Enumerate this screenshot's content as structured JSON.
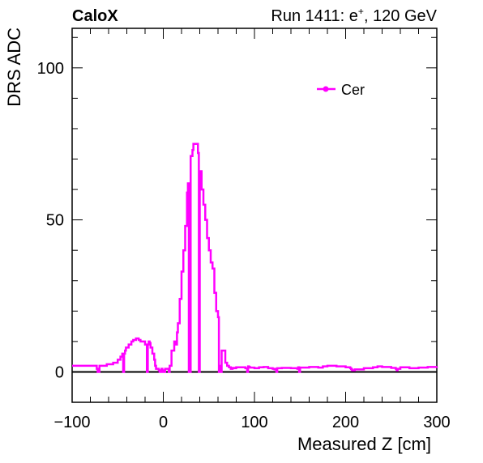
{
  "chart_data": {
    "type": "line",
    "title_left": "CaloX",
    "title_right_prefix": "Run 1411: e",
    "title_right_sup": "+",
    "title_right_suffix": ", 120 GeV",
    "xlabel": "Measured Z [cm]",
    "ylabel": "DRS ADC",
    "xlim": [
      -100,
      300
    ],
    "ylim": [
      -10,
      113
    ],
    "xticks": [
      -100,
      0,
      100,
      200,
      300
    ],
    "xtick_labels": [
      "−100",
      "0",
      "100",
      "200",
      "300"
    ],
    "yticks": [
      0,
      50,
      100
    ],
    "ytick_labels": [
      "0",
      "50",
      "100"
    ],
    "zero_line": 0,
    "legend_position": "top-right",
    "series": [
      {
        "name": "Cer",
        "color": "#ff00ff",
        "x": [
          -100,
          -75,
          -73,
          -72,
          -70,
          -67,
          -62,
          -55,
          -50,
          -47,
          -45,
          -44,
          -43,
          -42,
          -41,
          -40,
          -38,
          -35,
          -33,
          -30,
          -28,
          -27,
          -25,
          -23,
          -20,
          -18,
          -17,
          -16,
          -15,
          -14,
          -12,
          -10,
          -9,
          -8,
          -7,
          -5,
          -4,
          -3,
          -2,
          -1,
          0,
          2,
          5,
          6,
          7,
          8,
          9,
          10,
          12,
          14,
          15,
          16,
          18,
          20,
          22,
          24,
          26,
          27,
          28,
          30,
          32,
          33,
          34,
          36,
          38,
          39,
          40,
          41,
          42,
          44,
          46,
          48,
          50,
          52,
          54,
          56,
          58,
          60,
          61,
          62,
          63,
          64,
          66,
          67,
          68,
          70,
          72,
          74,
          76,
          78,
          80,
          85,
          90,
          92,
          93,
          94,
          95,
          100,
          105,
          110,
          115,
          120,
          122,
          123,
          124,
          125,
          130,
          140,
          147,
          148,
          149,
          150,
          160,
          170,
          175,
          180,
          190,
          200,
          205,
          206,
          207,
          210,
          220,
          230,
          235,
          240,
          250,
          255,
          256,
          257,
          260,
          270,
          280,
          290,
          300
        ],
        "y": [
          2,
          2,
          1,
          0,
          2,
          2,
          2.5,
          3,
          4,
          5,
          6,
          0,
          6,
          7,
          8,
          8,
          9,
          10,
          10.5,
          11,
          11,
          10.5,
          10,
          10,
          9,
          0,
          9,
          10,
          9.5,
          8,
          6,
          4,
          2,
          1,
          1,
          0.5,
          0,
          0,
          1,
          0.5,
          0,
          1,
          1,
          0,
          2,
          2,
          7,
          7,
          10,
          9,
          13,
          16,
          24,
          33,
          40,
          48,
          59,
          62,
          0,
          71,
          73,
          75,
          75,
          75,
          72,
          0,
          66,
          66,
          60,
          55,
          50,
          44,
          40,
          36,
          34,
          26,
          20,
          18,
          0,
          2,
          0,
          7,
          7,
          7,
          3,
          2,
          1.5,
          1,
          1.3,
          1.2,
          1.5,
          1.5,
          1.2,
          0,
          1.8,
          1.6,
          1.4,
          1.2,
          1.5,
          1.6,
          1.2,
          1,
          0.8,
          1,
          0,
          1.2,
          1.3,
          1.2,
          1,
          1.5,
          0,
          1.4,
          1.6,
          1.4,
          1.8,
          2,
          1.8,
          1.5,
          1.2,
          0.9,
          0.5,
          0.8,
          1.2,
          1.5,
          1.8,
          1.6,
          1.3,
          1,
          0.5,
          1,
          1.5,
          1.2,
          1.4,
          1.6,
          1.8
        ]
      }
    ]
  }
}
